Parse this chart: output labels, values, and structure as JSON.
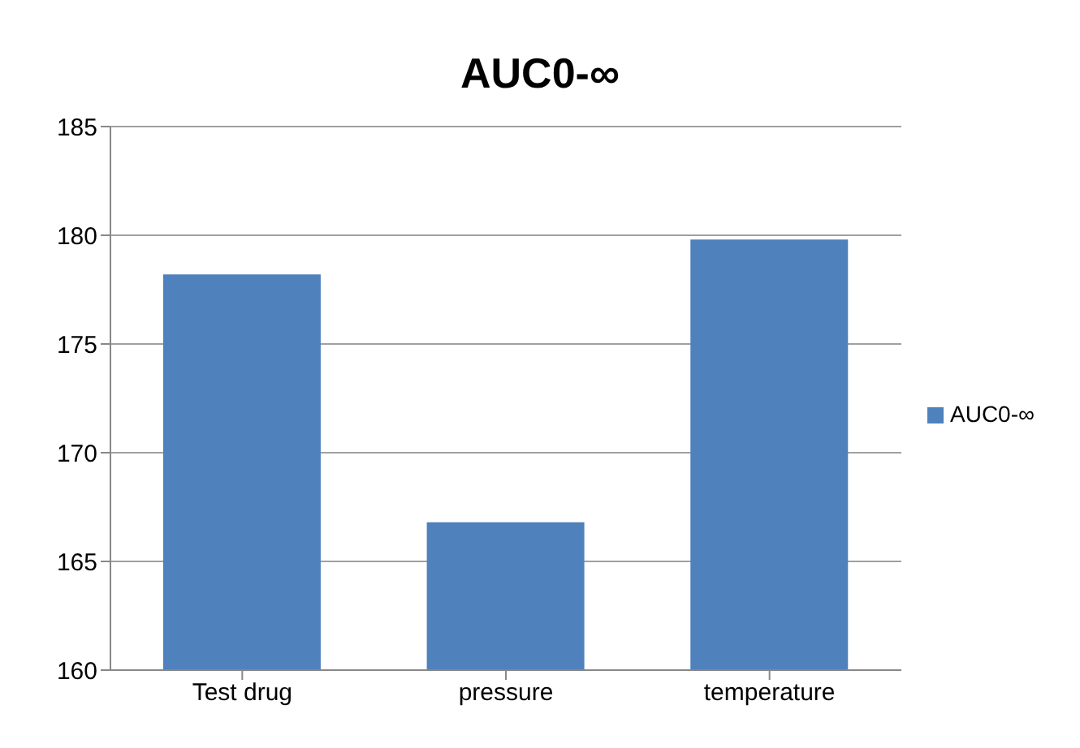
{
  "chart_data": {
    "type": "bar",
    "title": "AUC0-∞",
    "categories": [
      "Test drug",
      "pressure",
      "temperature"
    ],
    "series": [
      {
        "name": "AUC0-∞",
        "color": "#4f81bd",
        "values": [
          178.2,
          166.8,
          179.8
        ]
      }
    ],
    "ylim": [
      160,
      185
    ],
    "yticks": [
      160,
      165,
      170,
      175,
      180,
      185
    ],
    "grid": "y",
    "legend": "right"
  }
}
